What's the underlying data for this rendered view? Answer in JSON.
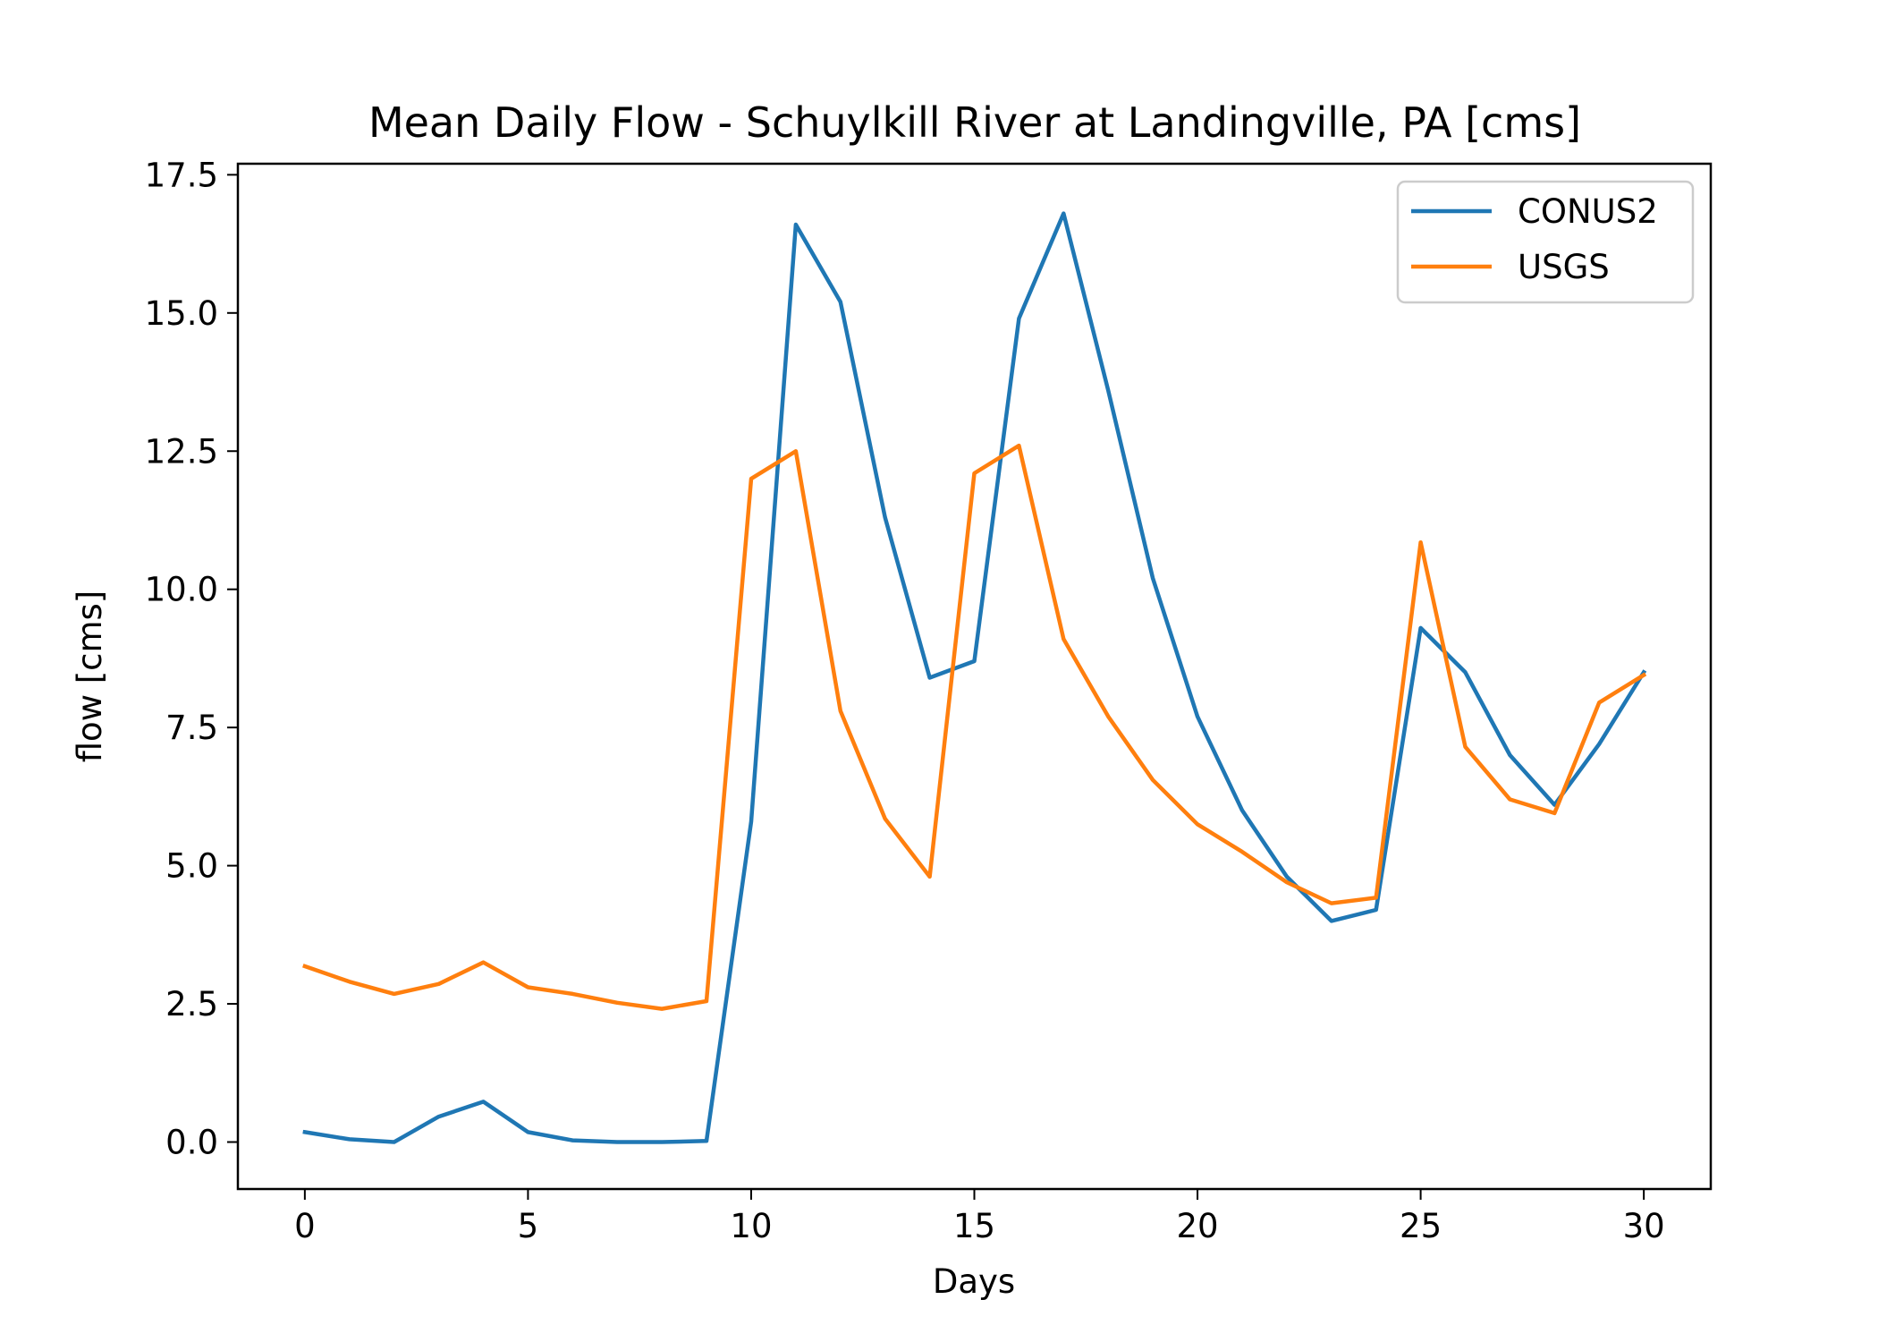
{
  "chart_data": {
    "type": "line",
    "title": "Mean Daily Flow - Schuylkill River at Landingville, PA [cms]",
    "xlabel": "Days",
    "ylabel": "flow [cms]",
    "xlim": [
      -1.5,
      31.5
    ],
    "ylim": [
      -0.85,
      17.7
    ],
    "xticks": [
      0,
      5,
      10,
      15,
      20,
      25,
      30
    ],
    "xtick_labels": [
      "0",
      "5",
      "10",
      "15",
      "20",
      "25",
      "30"
    ],
    "yticks": [
      0.0,
      2.5,
      5.0,
      7.5,
      10.0,
      12.5,
      15.0,
      17.5
    ],
    "ytick_labels": [
      "0.0",
      "2.5",
      "5.0",
      "7.5",
      "10.0",
      "12.5",
      "15.0",
      "17.5"
    ],
    "grid": false,
    "legend_position": "top-right",
    "x": [
      0,
      1,
      2,
      3,
      4,
      5,
      6,
      7,
      8,
      9,
      10,
      11,
      12,
      13,
      14,
      15,
      16,
      17,
      18,
      19,
      20,
      21,
      22,
      23,
      24,
      25,
      26,
      27,
      28,
      29,
      30
    ],
    "series": [
      {
        "name": "CONUS2",
        "color": "#1f77b4",
        "values": [
          0.18,
          0.05,
          0.0,
          0.46,
          0.73,
          0.18,
          0.03,
          0.0,
          0.0,
          0.02,
          5.8,
          16.6,
          15.2,
          11.3,
          8.4,
          8.7,
          14.9,
          16.8,
          13.6,
          10.2,
          7.7,
          6.0,
          4.8,
          4.0,
          4.2,
          9.3,
          8.5,
          7.0,
          6.1,
          7.2,
          8.5
        ]
      },
      {
        "name": "USGS",
        "color": "#ff7f0e",
        "values": [
          3.18,
          2.9,
          2.68,
          2.86,
          3.25,
          2.8,
          2.68,
          2.52,
          2.41,
          2.55,
          12.0,
          12.5,
          7.8,
          5.85,
          4.8,
          12.1,
          12.6,
          9.1,
          7.7,
          6.55,
          5.75,
          5.25,
          4.7,
          4.32,
          4.42,
          10.85,
          7.15,
          6.2,
          5.95,
          7.95,
          8.45
        ]
      }
    ]
  }
}
